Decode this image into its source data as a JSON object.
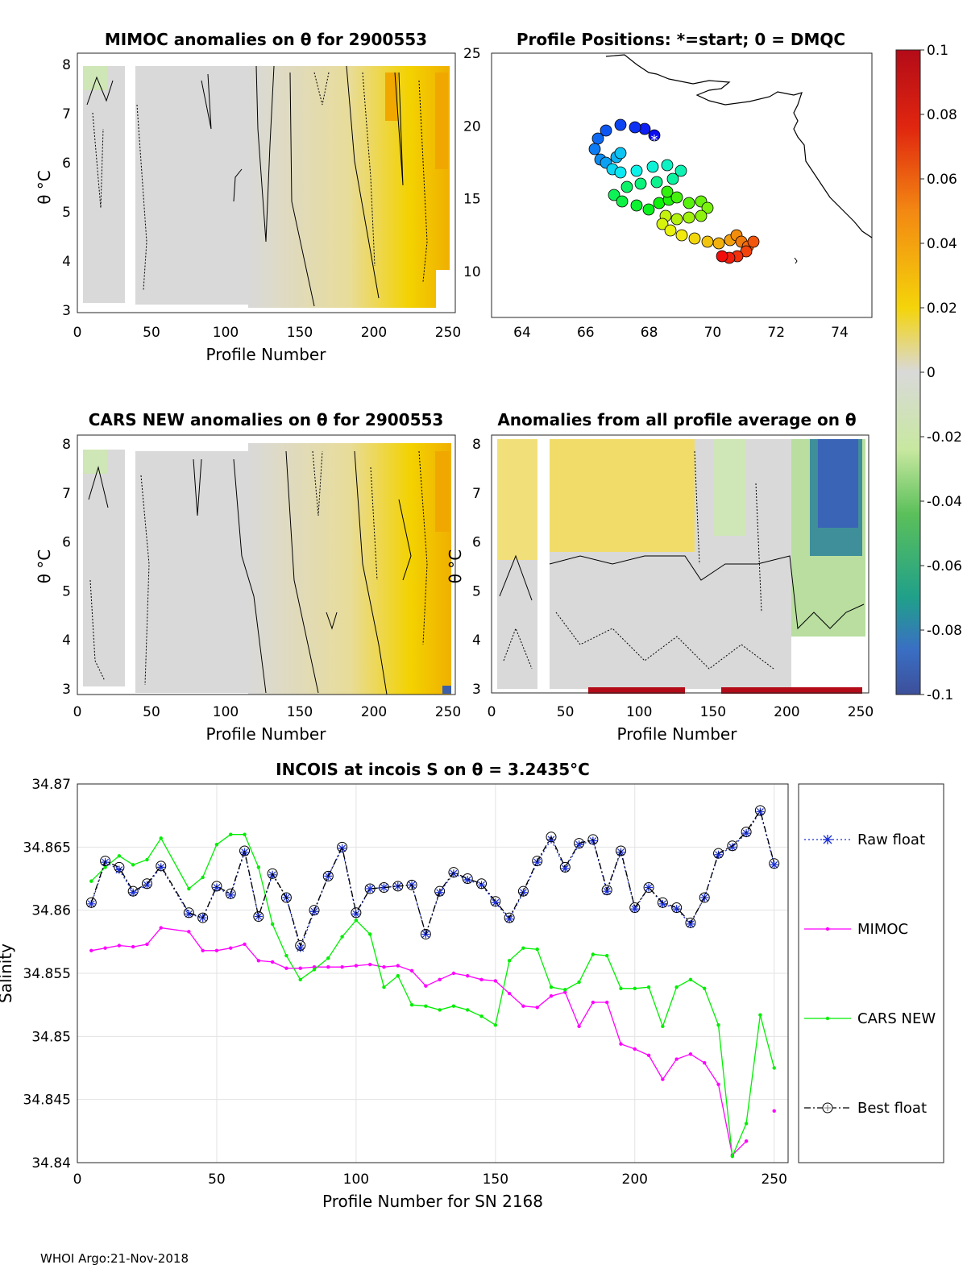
{
  "colors": {
    "raw_float": "#1a2fd6",
    "mimoc": "#ff00ff",
    "cars_new": "#00ee00",
    "best_float": "#000000",
    "grid": "#e3e3e3",
    "anomaly_neutral": "#d8d8d8",
    "anomaly_pos": "#f2d200",
    "anomaly_neg": "#3d5ea8"
  },
  "panels": {
    "mimoc": {
      "title": "MIMOC anomalies on θ  for 2900553",
      "xlabel": "Profile Number",
      "ylabel": "θ °C",
      "xticks": [
        "0",
        "50",
        "100",
        "150",
        "200",
        "250"
      ],
      "yticks": [
        "3",
        "4",
        "5",
        "6",
        "7",
        "8"
      ]
    },
    "map": {
      "title": "Profile Positions: *=start; 0 = DMQC",
      "xticks": [
        "64",
        "66",
        "68",
        "70",
        "72",
        "74"
      ],
      "yticks": [
        "10",
        "15",
        "20",
        "25"
      ]
    },
    "cars": {
      "title": "CARS NEW anomalies on θ for 2900553",
      "xlabel": "Profile Number",
      "ylabel": "θ °C",
      "xticks": [
        "0",
        "50",
        "100",
        "150",
        "200",
        "250"
      ],
      "yticks": [
        "3",
        "4",
        "5",
        "6",
        "7",
        "8"
      ]
    },
    "avg": {
      "title": "Anomalies from all profile average on θ",
      "xlabel": "Profile Number",
      "ylabel": "θ °C",
      "xticks": [
        "0",
        "50",
        "100",
        "150",
        "200",
        "250"
      ],
      "yticks": [
        "3",
        "4",
        "5",
        "6",
        "7",
        "8"
      ]
    },
    "colorbar": {
      "ticks": [
        "0.1",
        "0.08",
        "0.06",
        "0.04",
        "0.02",
        "0",
        "-0.02",
        "-0.04",
        "-0.06",
        "-0.08",
        "-0.1"
      ]
    }
  },
  "chart_data": {
    "type": "line",
    "title": "INCOIS at incois S on θ = 3.2435°C",
    "xlabel": "Profile Number for SN 2168",
    "ylabel": "Salinity",
    "xlim": [
      0,
      255
    ],
    "ylim": [
      34.84,
      34.87
    ],
    "xticks": [
      "0",
      "50",
      "100",
      "150",
      "200",
      "250"
    ],
    "yticks": [
      "34.84",
      "34.845",
      "34.85",
      "34.855",
      "34.86",
      "34.865",
      "34.87"
    ],
    "x": [
      5,
      10,
      15,
      20,
      25,
      30,
      40,
      45,
      50,
      55,
      60,
      65,
      70,
      75,
      80,
      85,
      90,
      95,
      100,
      105,
      110,
      115,
      120,
      125,
      130,
      135,
      140,
      145,
      150,
      155,
      160,
      165,
      170,
      175,
      180,
      185,
      190,
      195,
      200,
      205,
      210,
      215,
      220,
      225,
      230,
      235,
      240,
      245,
      250
    ],
    "series": [
      {
        "name": "Raw float",
        "values": [
          34.8605,
          34.8638,
          34.8632,
          34.8614,
          34.862,
          34.8634,
          34.8597,
          34.8594,
          34.8618,
          34.8612,
          34.8646,
          34.8595,
          34.8628,
          34.861,
          34.857,
          34.8599,
          34.8627,
          34.8649,
          34.8597,
          34.8617,
          34.8618,
          34.8619,
          34.862,
          34.8581,
          34.8614,
          34.8629,
          34.8624,
          34.862,
          34.8606,
          34.8593,
          34.8614,
          34.8638,
          34.8656,
          34.8633,
          34.8652,
          34.8655,
          34.8615,
          34.8646,
          34.8601,
          34.8618,
          34.8605,
          34.8601,
          34.8589,
          34.861,
          34.8644,
          34.865,
          34.8661,
          34.8678,
          34.8636
        ]
      },
      {
        "name": "MIMOC",
        "values": [
          34.8568,
          34.857,
          34.8572,
          34.8571,
          34.8573,
          34.8586,
          34.8583,
          34.8568,
          34.8568,
          34.857,
          34.8573,
          34.856,
          34.8559,
          34.8554,
          34.8554,
          34.8555,
          34.8555,
          34.8555,
          34.8556,
          34.8557,
          34.8555,
          34.8556,
          34.8552,
          34.854,
          34.8545,
          34.855,
          34.8548,
          34.8545,
          34.8544,
          34.8534,
          34.8524,
          34.8523,
          34.8532,
          34.8535,
          34.8508,
          34.8527,
          34.8527,
          34.8494,
          34.849,
          34.8485,
          34.8466,
          34.8482,
          34.8486,
          34.8479,
          34.8462,
          34.8406,
          34.8417,
          null,
          34.8441
        ]
      },
      {
        "name": "CARS NEW",
        "values": [
          34.8623,
          34.8634,
          34.8643,
          34.8636,
          34.864,
          34.8657,
          34.8617,
          34.8626,
          34.8652,
          34.866,
          34.866,
          34.8634,
          34.8589,
          34.8564,
          34.8545,
          34.8553,
          34.8562,
          34.8579,
          34.8592,
          34.8581,
          34.8539,
          34.8548,
          34.8525,
          34.8524,
          34.8521,
          34.8524,
          34.8521,
          34.8516,
          34.8509,
          34.856,
          34.857,
          34.8569,
          34.8539,
          34.8537,
          34.8543,
          34.8565,
          34.8564,
          34.8538,
          34.8538,
          34.8539,
          34.8508,
          34.8539,
          34.8545,
          34.8538,
          34.8509,
          34.8405,
          34.8431,
          34.8517,
          34.8475
        ]
      },
      {
        "name": "Best float",
        "values": [
          34.8606,
          34.8639,
          34.8634,
          34.8615,
          34.8621,
          34.8635,
          34.8598,
          34.8594,
          34.8619,
          34.8613,
          34.8647,
          34.8595,
          34.8629,
          34.861,
          34.8572,
          34.86,
          34.8627,
          34.865,
          34.8598,
          34.8617,
          34.8618,
          34.8619,
          34.862,
          34.8581,
          34.8615,
          34.863,
          34.8625,
          34.8621,
          34.8607,
          34.8594,
          34.8615,
          34.8639,
          34.8658,
          34.8634,
          34.8653,
          34.8656,
          34.8616,
          34.8647,
          34.8602,
          34.8618,
          34.8606,
          34.8602,
          34.859,
          34.861,
          34.8645,
          34.8651,
          34.8662,
          34.8679,
          34.8637
        ]
      }
    ]
  },
  "footer": "WHOI Argo:21-Nov-2018"
}
